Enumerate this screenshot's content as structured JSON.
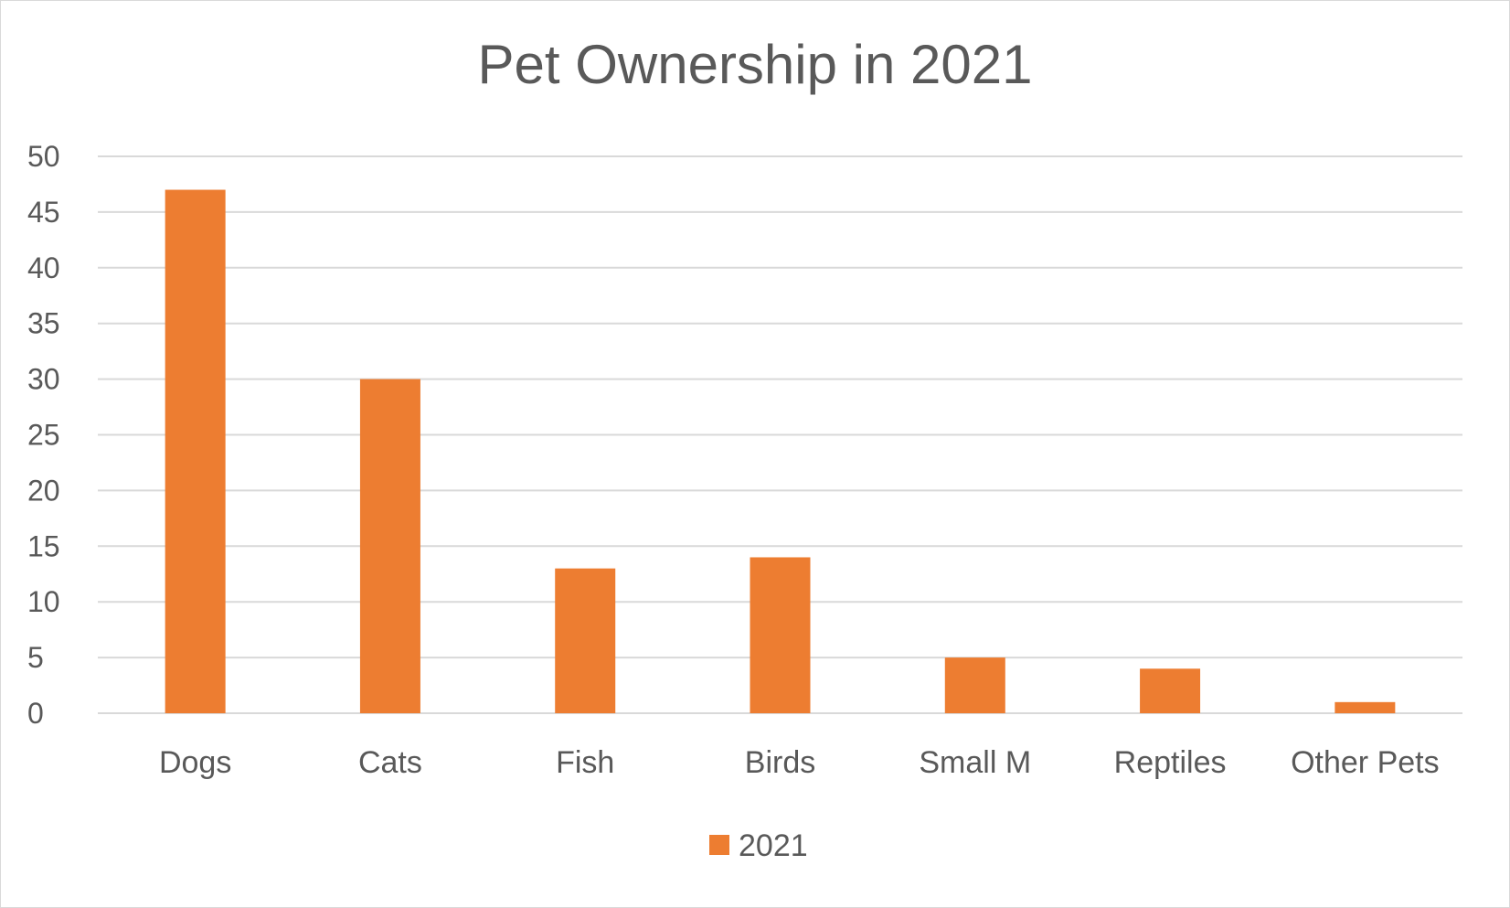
{
  "chart_data": {
    "type": "bar",
    "title": "Pet Ownership in 2021",
    "categories": [
      "Dogs",
      "Cats",
      "Fish",
      "Birds",
      "Small M",
      "Reptiles",
      "Other Pets"
    ],
    "series": [
      {
        "name": "2021",
        "values": [
          47,
          30,
          13,
          14,
          5,
          4,
          1
        ],
        "color": "#ED7D31"
      }
    ],
    "ylim": [
      0,
      50
    ],
    "yticks": [
      0,
      5,
      10,
      15,
      20,
      25,
      30,
      35,
      40,
      45,
      50
    ],
    "grid": true,
    "legend_position": "bottom",
    "xlabel": "",
    "ylabel": ""
  }
}
